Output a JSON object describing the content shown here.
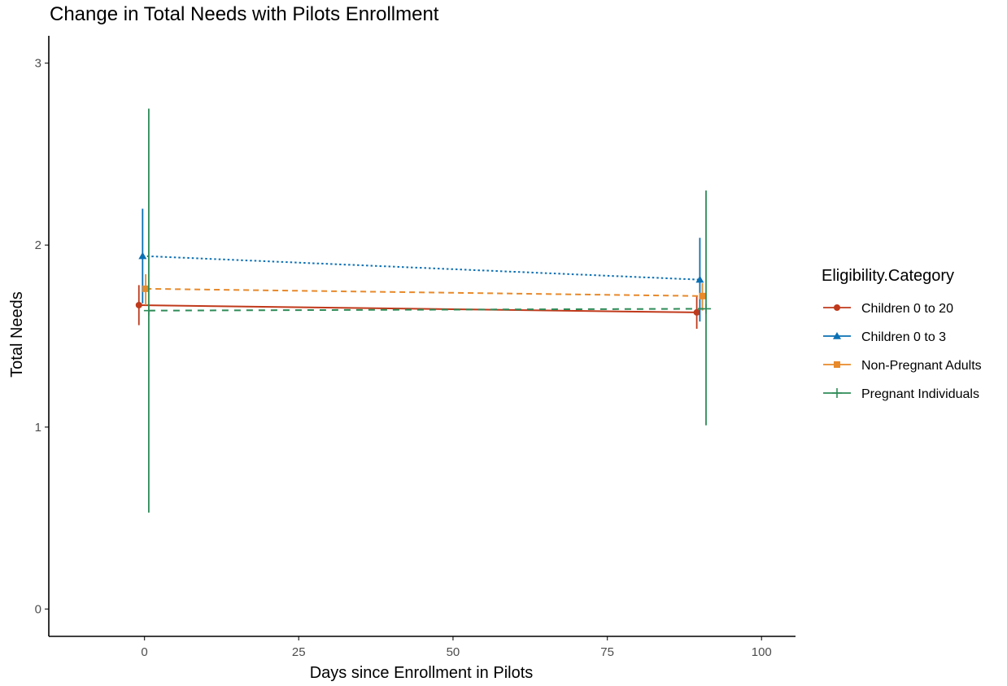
{
  "chart_data": {
    "type": "line",
    "title": "Change in Total Needs with Pilots Enrollment",
    "xlabel": "Days since Enrollment in Pilots",
    "ylabel": "Total Needs",
    "xlim": [
      -15.5,
      105.5
    ],
    "ylim": [
      -0.15,
      3.15
    ],
    "x_ticks": [
      0,
      25,
      50,
      75,
      100
    ],
    "y_ticks": [
      0,
      1,
      2,
      3
    ],
    "x_tick_labels": [
      "0",
      "25",
      "50",
      "75",
      "100"
    ],
    "y_tick_labels": [
      "0",
      "1",
      "2",
      "3"
    ],
    "grid": false,
    "legend_title": "Eligibility.Category",
    "legend_position": "right",
    "series": [
      {
        "name": "Children 0 to 20",
        "color": "#c0391b",
        "marker": "circle",
        "linetype": "solid",
        "points": [
          {
            "x": -0.9,
            "y": 1.67,
            "ymin": 1.56,
            "ymax": 1.78
          },
          {
            "x": 89.5,
            "y": 1.63,
            "ymin": 1.54,
            "ymax": 1.72
          }
        ]
      },
      {
        "name": "Children 0 to 3",
        "color": "#0a70b4",
        "marker": "triangle",
        "linetype": "dotted",
        "points": [
          {
            "x": -0.3,
            "y": 1.94,
            "ymin": 1.68,
            "ymax": 2.2
          },
          {
            "x": 90.0,
            "y": 1.81,
            "ymin": 1.58,
            "ymax": 2.04
          }
        ]
      },
      {
        "name": "Non-Pregnant Adults",
        "color": "#e8892a",
        "marker": "square",
        "linetype": "dashed",
        "points": [
          {
            "x": 0.2,
            "y": 1.76,
            "ymin": 1.67,
            "ymax": 1.84
          },
          {
            "x": 90.4,
            "y": 1.72,
            "ymin": 1.64,
            "ymax": 1.79
          }
        ]
      },
      {
        "name": "Pregnant Individuals",
        "color": "#2e8b57",
        "marker": "cross",
        "linetype": "longdash",
        "points": [
          {
            "x": 0.7,
            "y": 1.64,
            "ymin": 0.53,
            "ymax": 2.75
          },
          {
            "x": 91.0,
            "y": 1.65,
            "ymin": 1.01,
            "ymax": 2.3
          }
        ]
      }
    ]
  }
}
